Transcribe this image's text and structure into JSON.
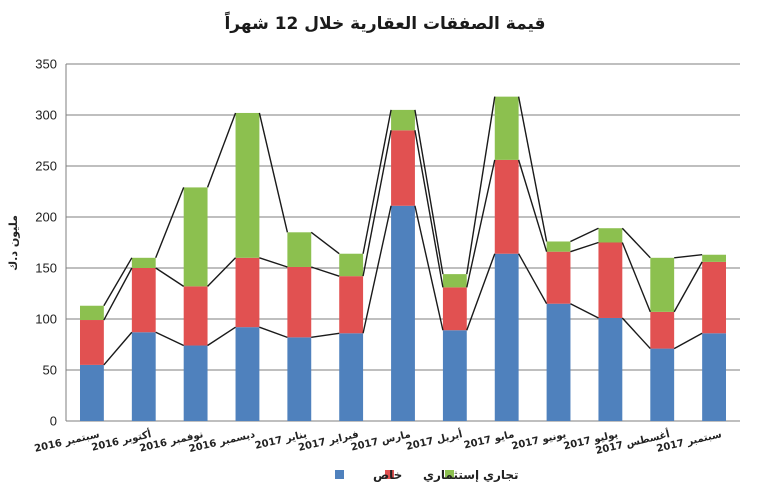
{
  "chart_data": {
    "type": "bar",
    "stacked": true,
    "title": "قيمة الصفقات العقارية خلال 12 شهراً",
    "ylabel": "مليون د.ك",
    "xlabel": "",
    "ylim": [
      0,
      350
    ],
    "yticks": [
      0,
      50,
      100,
      150,
      200,
      250,
      300,
      350
    ],
    "grid": true,
    "legend_position": "bottom",
    "categories": [
      "سبتمبر 2016",
      "أكتوبر 2016",
      "نوفمبر 2016",
      "ديسمبر 2016",
      "يناير 2017",
      "فبراير 2017",
      "مارس 2017",
      "أبريل 2017",
      "مايو 2017",
      "يونيو 2017",
      "يوليو 2017",
      "أغسطس 2017",
      "سبتمبر 2017"
    ],
    "series": [
      {
        "name": "خاص",
        "color": "#4f81bd",
        "values": [
          55,
          87,
          74,
          92,
          82,
          86,
          211,
          89,
          164,
          115,
          101,
          71,
          86
        ]
      },
      {
        "name": "إستثماري",
        "color": "#e15151",
        "values": [
          44,
          63,
          58,
          68,
          69,
          56,
          74,
          42,
          92,
          51,
          74,
          36,
          70
        ]
      },
      {
        "name": "تجاري",
        "color": "#8cc04f",
        "values": [
          14,
          10,
          97,
          142,
          34,
          22,
          20,
          13,
          62,
          10,
          14,
          53,
          7
        ]
      }
    ]
  }
}
